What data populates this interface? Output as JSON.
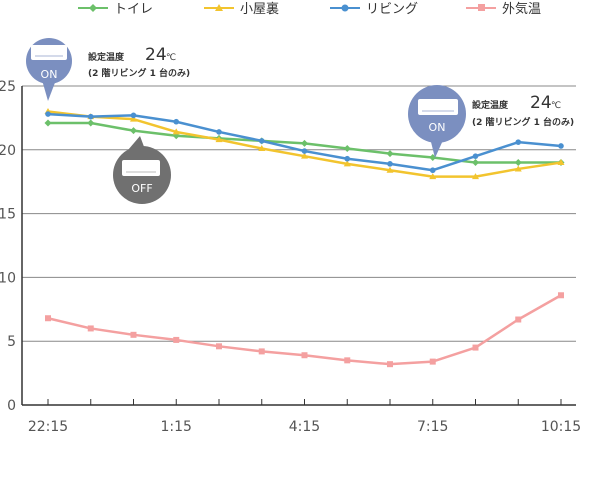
{
  "chart_data": {
    "type": "line",
    "title": "",
    "xlabel": "",
    "ylabel": "",
    "ylim": [
      0,
      25
    ],
    "yticks": [
      0,
      5,
      10,
      15,
      20,
      25
    ],
    "grid": true,
    "legend_position": "top",
    "x": [
      "22:15",
      "23:15",
      "0:15",
      "1:15",
      "2:15",
      "3:15",
      "4:15",
      "5:15",
      "6:15",
      "7:15",
      "8:15",
      "9:15",
      "10:15"
    ],
    "x_tick_labels": [
      "22:15",
      "1:15",
      "4:15",
      "7:15",
      "10:15"
    ],
    "series": [
      {
        "name": "トイレ",
        "color": "#6cc06a",
        "marker": "diamond",
        "values": [
          22.1,
          22.1,
          21.5,
          21.1,
          20.9,
          20.7,
          20.5,
          20.1,
          19.7,
          19.4,
          19.0,
          19.0,
          19.0
        ]
      },
      {
        "name": "小屋裏",
        "color": "#f2c42e",
        "marker": "triangle",
        "values": [
          23.0,
          22.6,
          22.4,
          21.4,
          20.8,
          20.1,
          19.5,
          18.9,
          18.4,
          17.9,
          17.9,
          18.5,
          19.0
        ]
      },
      {
        "name": "リビング",
        "color": "#4a90d0",
        "marker": "circle",
        "values": [
          22.8,
          22.6,
          22.7,
          22.2,
          21.4,
          20.7,
          19.9,
          19.3,
          18.9,
          18.4,
          19.5,
          20.6,
          20.3
        ]
      },
      {
        "name": "外気温",
        "color": "#f4a0a0",
        "marker": "square",
        "values": [
          6.8,
          6.0,
          5.5,
          5.1,
          4.6,
          4.2,
          3.9,
          3.5,
          3.2,
          3.4,
          4.5,
          6.7,
          8.6
        ]
      }
    ],
    "annotations": [
      {
        "bubble": "ON",
        "title": "設定温度",
        "temp": "24",
        "unit": "℃",
        "detail": "(2 階リビング 1 台のみ)"
      },
      {
        "bubble": "OFF"
      },
      {
        "bubble": "ON",
        "title": "設定温度",
        "temp": "24",
        "unit": "℃",
        "detail": "(2 階リビング 1 台のみ)"
      }
    ]
  }
}
